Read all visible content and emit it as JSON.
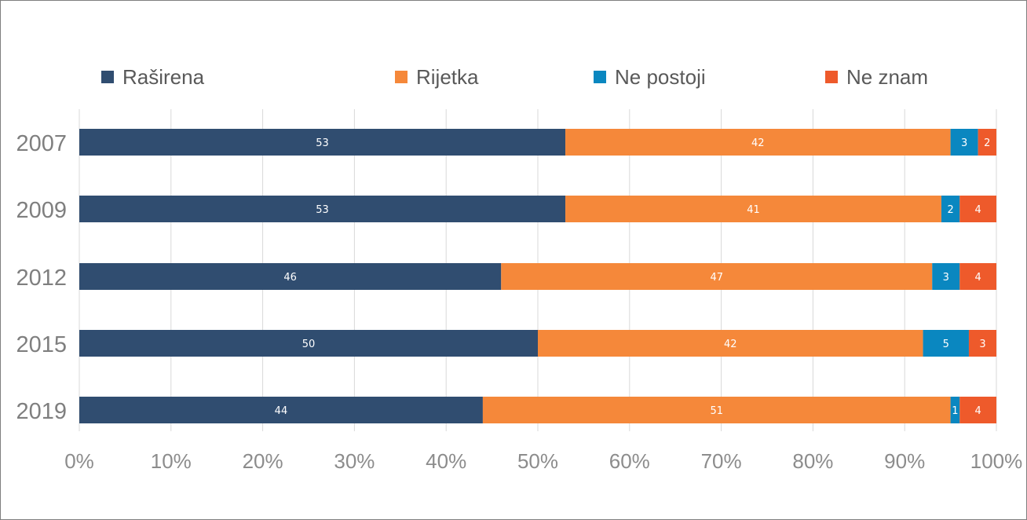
{
  "chart_data": {
    "type": "bar",
    "orientation": "horizontal",
    "stacked": "percent",
    "categories": [
      "2007",
      "2009",
      "2012",
      "2015",
      "2019"
    ],
    "series": [
      {
        "name": "Raširena",
        "color": "#304d70",
        "values": [
          53,
          53,
          46,
          50,
          44
        ]
      },
      {
        "name": "Rijetka",
        "color": "#f5883a",
        "values": [
          42,
          41,
          47,
          42,
          51
        ]
      },
      {
        "name": "Ne postoji",
        "color": "#0a87c0",
        "values": [
          3,
          2,
          3,
          5,
          1
        ]
      },
      {
        "name": "Ne znam",
        "color": "#ee5a2b",
        "values": [
          2,
          4,
          4,
          3,
          4
        ]
      }
    ],
    "x_ticks": [
      "0%",
      "10%",
      "20%",
      "30%",
      "40%",
      "50%",
      "60%",
      "70%",
      "80%",
      "90%",
      "100%"
    ],
    "xlim": [
      0,
      100
    ],
    "grid": "vertical",
    "legend_position": "top",
    "data_labels": true
  }
}
